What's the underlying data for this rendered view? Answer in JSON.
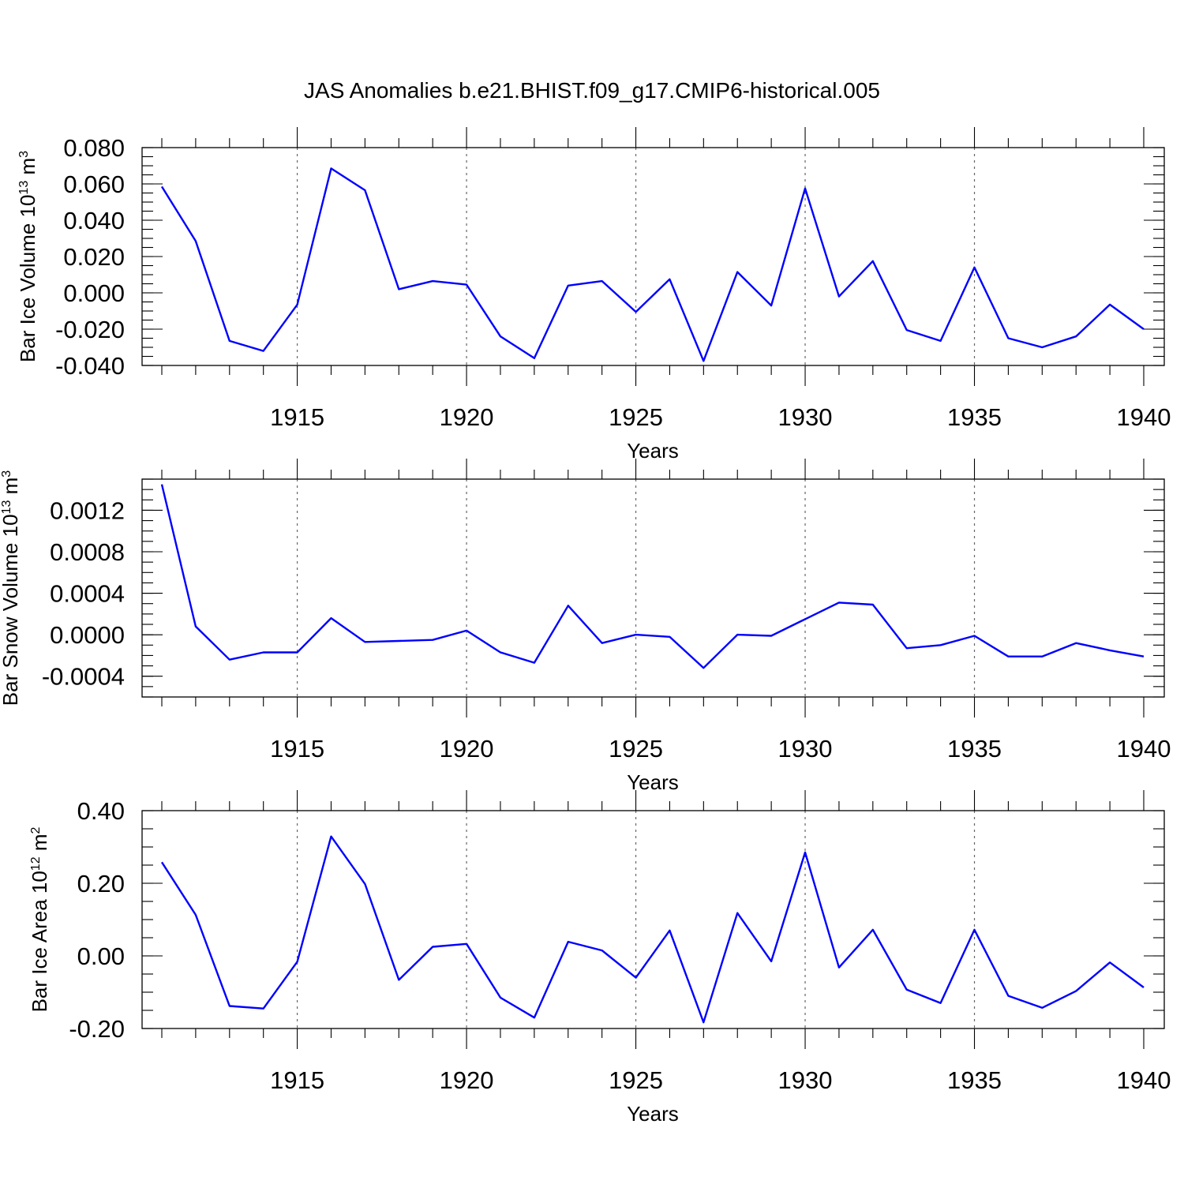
{
  "figure": {
    "title": "JAS Anomalies b.e21.BHIST.f09_g17.CMIP6-historical.005",
    "line_color": "#0000ff"
  },
  "chart_data": [
    {
      "type": "line",
      "title": "",
      "xlabel": "Years",
      "ylabel": {
        "text": "Bar Ice Volume 10",
        "exp": "13",
        "unit": " m",
        "unit_exp": "3"
      },
      "xlim": [
        1911,
        1940
      ],
      "ylim": [
        -0.04,
        0.08
      ],
      "yticks": [
        -0.04,
        -0.02,
        0.0,
        0.02,
        0.04,
        0.06,
        0.08
      ],
      "ytick_labels": [
        "-0.040",
        "-0.020",
        "0.000",
        "0.020",
        "0.040",
        "0.060",
        "0.080"
      ],
      "yminor_step": 0.005,
      "xticks": [
        1915,
        1920,
        1925,
        1930,
        1935,
        1940
      ],
      "xtick_labels": [
        "1915",
        "1920",
        "1925",
        "1930",
        "1935",
        "1940"
      ],
      "x": [
        1911,
        1912,
        1913,
        1914,
        1915,
        1916,
        1917,
        1918,
        1919,
        1920,
        1921,
        1922,
        1923,
        1924,
        1925,
        1926,
        1927,
        1928,
        1929,
        1930,
        1931,
        1932,
        1933,
        1934,
        1935,
        1936,
        1937,
        1938,
        1939,
        1940
      ],
      "series": [
        {
          "name": "Bar Ice Volume",
          "values": [
            0.0585,
            0.0285,
            -0.0265,
            -0.032,
            -0.0065,
            0.0685,
            0.0565,
            0.002,
            0.0065,
            0.0045,
            -0.024,
            -0.036,
            0.004,
            0.0065,
            -0.0105,
            0.0075,
            -0.0375,
            0.0115,
            -0.007,
            0.0575,
            -0.002,
            0.0175,
            -0.0205,
            -0.0265,
            0.014,
            -0.025,
            -0.03,
            -0.024,
            -0.0065,
            -0.02
          ]
        }
      ]
    },
    {
      "type": "line",
      "title": "",
      "xlabel": "Years",
      "ylabel": {
        "text": "Bar Snow Volume 10",
        "exp": "13",
        "unit": " m",
        "unit_exp": "3"
      },
      "xlim": [
        1911,
        1940
      ],
      "ylim": [
        -0.0006,
        0.0015
      ],
      "yticks": [
        -0.0004,
        0.0,
        0.0004,
        0.0008,
        0.0012
      ],
      "ytick_labels": [
        "-0.0004",
        "0.0000",
        "0.0004",
        "0.0008",
        "0.0012"
      ],
      "yminor_step": 0.0001,
      "xticks": [
        1915,
        1920,
        1925,
        1930,
        1935,
        1940
      ],
      "xtick_labels": [
        "1915",
        "1920",
        "1925",
        "1930",
        "1935",
        "1940"
      ],
      "x": [
        1911,
        1912,
        1913,
        1914,
        1915,
        1916,
        1917,
        1918,
        1919,
        1920,
        1921,
        1922,
        1923,
        1924,
        1925,
        1926,
        1927,
        1928,
        1929,
        1930,
        1931,
        1932,
        1933,
        1934,
        1935,
        1936,
        1937,
        1938,
        1939,
        1940
      ],
      "series": [
        {
          "name": "Bar Snow Volume",
          "values": [
            0.00145,
            8e-05,
            -0.00024,
            -0.00017,
            -0.00017,
            0.00016,
            -7e-05,
            -6e-05,
            -5e-05,
            4e-05,
            -0.00017,
            -0.00027,
            0.00028,
            -8e-05,
            0.0,
            -2e-05,
            -0.00032,
            0.0,
            -1e-05,
            0.00015,
            0.00031,
            0.00029,
            -0.00013,
            -0.0001,
            -1e-05,
            -0.00021,
            -0.00021,
            -8e-05,
            -0.00015,
            -0.00021
          ]
        }
      ]
    },
    {
      "type": "line",
      "title": "",
      "xlabel": "Years",
      "ylabel": {
        "text": "Bar Ice Area 10",
        "exp": "12",
        "unit": " m",
        "unit_exp": "2"
      },
      "xlim": [
        1911,
        1940
      ],
      "ylim": [
        -0.2,
        0.4
      ],
      "yticks": [
        -0.2,
        0.0,
        0.2,
        0.4
      ],
      "ytick_labels": [
        "-0.20",
        "0.00",
        "0.20",
        "0.40"
      ],
      "yminor_step": 0.05,
      "xticks": [
        1915,
        1920,
        1925,
        1930,
        1935,
        1940
      ],
      "xtick_labels": [
        "1915",
        "1920",
        "1925",
        "1930",
        "1935",
        "1940"
      ],
      "x": [
        1911,
        1912,
        1913,
        1914,
        1915,
        1916,
        1917,
        1918,
        1919,
        1920,
        1921,
        1922,
        1923,
        1924,
        1925,
        1926,
        1927,
        1928,
        1929,
        1930,
        1931,
        1932,
        1933,
        1934,
        1935,
        1936,
        1937,
        1938,
        1939,
        1940
      ],
      "series": [
        {
          "name": "Bar Ice Area",
          "values": [
            0.258,
            0.113,
            -0.138,
            -0.145,
            -0.016,
            0.329,
            0.198,
            -0.066,
            0.025,
            0.033,
            -0.115,
            -0.17,
            0.039,
            0.015,
            -0.06,
            0.07,
            -0.183,
            0.118,
            -0.015,
            0.285,
            -0.032,
            0.072,
            -0.093,
            -0.13,
            0.072,
            -0.11,
            -0.143,
            -0.097,
            -0.018,
            -0.087
          ]
        }
      ]
    }
  ]
}
